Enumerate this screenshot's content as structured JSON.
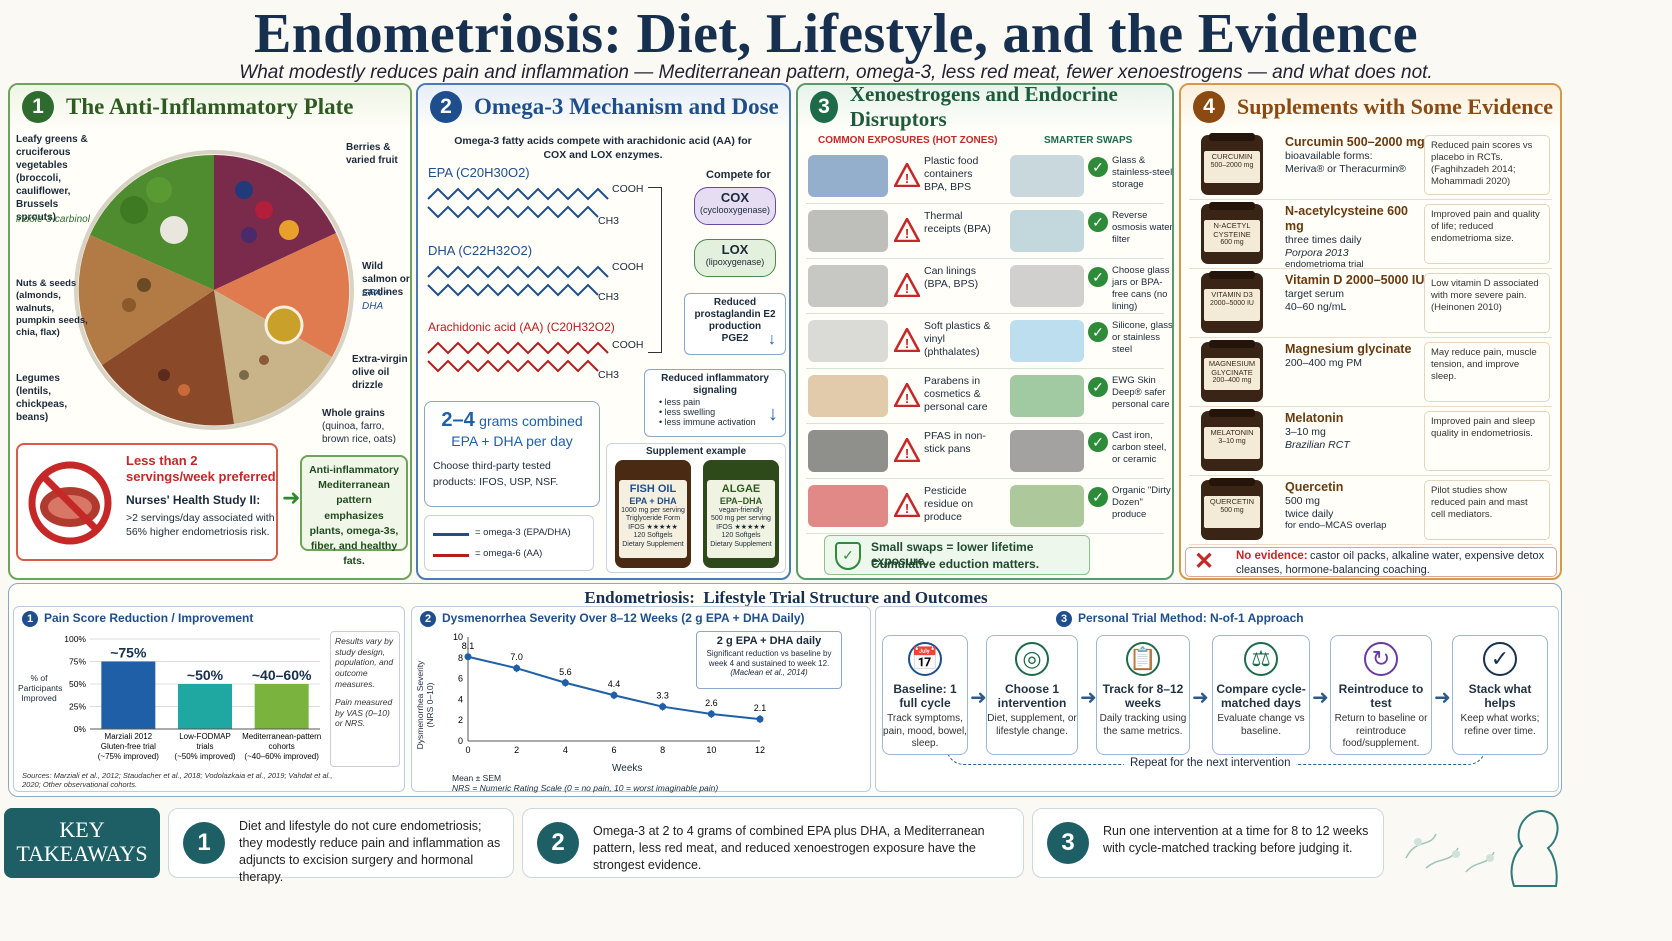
{
  "header": {
    "title": "Endometriosis: Diet, Lifestyle, and the Evidence",
    "subtitle": "What modestly reduces pain and inflammation — Mediterranean pattern, omega-3, less red meat, fewer xenoestrogens — and what does not."
  },
  "colors": {
    "green": "#2f6b2f",
    "blue": "#1f4e8c",
    "teal": "#1e6b4a",
    "brown": "#8a4a12",
    "navy": "#17304f",
    "red": "#c62828"
  },
  "panel1": {
    "num": "1",
    "title": "The Anti-Inflammatory Plate",
    "labels": {
      "leafy": "Leafy greens & cruciferous vegetables (broccoli, cauliflower, Brussels sprouts)",
      "leafy_note": "indole-3-carbinol",
      "berries": "Berries & varied fruit",
      "salmon": "Wild salmon or sardines",
      "salmon_note": "EPA + DHA",
      "nuts": "Nuts & seeds (almonds, walnuts, pumpkin seeds, chia, flax)",
      "oil": "Extra-virgin olive oil drizzle",
      "legumes": "Legumes (lentils, chickpeas, beans)",
      "grains_title": "Whole grains",
      "grains": "(quinoa, farro, brown rice, oats)"
    },
    "redmeat": {
      "heading": "Less than 2 servings/week preferred",
      "study": "Nurses' Health Study II:",
      "detail": ">2 servings/day associated with 56% higher endometriosis risk."
    },
    "med_box": "Anti-inflammatory Mediterranean pattern emphasizes plants, omega-3s, fiber, and healthy fats."
  },
  "panel2": {
    "num": "2",
    "title": "Omega-3 Mechanism and Dose",
    "intro": "Omega-3 fatty acids compete with arachidonic acid (AA) for COX and LOX enzymes.",
    "epa": "EPA (C20H30O2)",
    "dha": "DHA (C22H32O2)",
    "aa": "Arachidonic acid (AA) (C20H32O2)",
    "cooh": "COOH",
    "ch3": "CH3",
    "compete": "Compete for",
    "cox": "COX",
    "cox_sub": "(cyclooxygenase)",
    "lox": "LOX",
    "lox_sub": "(lipoxygenase)",
    "pge_title": "Reduced prostaglandin E2 production",
    "pge": "PGE2",
    "signal_title": "Reduced inflammatory signaling",
    "signal_items": [
      "less pain",
      "less swelling",
      "less immune activation"
    ],
    "dose_big": "2–4",
    "dose_rest": "grams combined EPA + DHA per day",
    "dose_note": "Choose third-party tested products: IFOS, USP, NSF.",
    "legend_o3": "= omega-3 (EPA/DHA)",
    "legend_o6": "= omega-6 (AA)",
    "supp_example": "Supplement example",
    "fish": {
      "name": "FISH OIL",
      "sub": "EPA + DHA",
      "d1": "1000 mg per serving",
      "d2": "Triglyceride Form",
      "d3": "IFOS ★★★★★",
      "d4": "120 Softgels",
      "d5": "Dietary Supplement"
    },
    "algae": {
      "name": "ALGAE",
      "sub": "EPA–DHA",
      "d1": "vegan-friendly",
      "d2": "500 mg per serving",
      "d3": "IFOS ★★★★★",
      "d4": "120 Softgels",
      "d5": "Dietary Supplement"
    }
  },
  "panel3": {
    "num": "3",
    "title": "Xenoestrogens and Endocrine Disruptors",
    "col_left": "COMMON EXPOSURES (HOT ZONES)",
    "col_right": "SMARTER SWAPS",
    "rows": [
      {
        "exposure": "Plastic food containers BPA, BPS",
        "swap": "Glass & stainless-steel storage"
      },
      {
        "exposure": "Thermal receipts (BPA)",
        "swap": "Reverse osmosis water filter"
      },
      {
        "exposure": "Can linings (BPA, BPS)",
        "swap": "Choose glass jars or BPA-free cans (no lining)"
      },
      {
        "exposure": "Soft plastics & vinyl (phthalates)",
        "swap": "Silicone, glass, or stainless steel"
      },
      {
        "exposure": "Parabens in cosmetics & personal care",
        "swap": "EWG Skin Deep® safer personal care"
      },
      {
        "exposure": "PFAS in non-stick pans",
        "swap": "Cast iron, carbon steel, or ceramic"
      },
      {
        "exposure": "Pesticide residue on produce",
        "swap": "Organic \"Dirty Dozen\" produce"
      }
    ],
    "footer1": "Small swaps = lower lifetime exposure.",
    "footer2": "Cumulative eduction matters."
  },
  "panel4": {
    "num": "4",
    "title": "Supplements with Some Evidence",
    "items": [
      {
        "label": "CURCUMIN",
        "dose_lbl": "500–2000 mg",
        "name": "Curcumin 500–2000 mg",
        "l2": "bioavailable forms:",
        "l3": "Meriva® or Theracurmin®",
        "l4": "",
        "note": "Reduced pain scores vs placebo in RCTs. (Faghihzadeh 2014; Mohammadi 2020)"
      },
      {
        "label": "N-ACETYL CYSTEINE",
        "dose_lbl": "600 mg",
        "name": "N-acetylcysteine 600 mg",
        "l2": "three times daily",
        "l3": "Porpora 2013",
        "l4": "endometrioma trial",
        "note": "Improved pain and quality of life; reduced endometrioma size."
      },
      {
        "label": "VITAMIN D3",
        "dose_lbl": "2000–5000 IU",
        "name": "Vitamin D 2000–5000 IU",
        "l2": "target serum",
        "l3": "40–60 ng/mL",
        "l4": "",
        "note": "Low vitamin D associated with more severe pain. (Heinonen 2010)"
      },
      {
        "label": "MAGNESIUM GLYCINATE",
        "dose_lbl": "200–400 mg",
        "name": "Magnesium glycinate",
        "l2": "200–400 mg PM",
        "l3": "",
        "l4": "",
        "note": "May reduce pain, muscle tension, and improve sleep."
      },
      {
        "label": "MELATONIN",
        "dose_lbl": "3–10 mg",
        "name": "Melatonin",
        "l2": "3–10 mg",
        "l3": "Brazilian RCT",
        "l4": "",
        "note": "Improved pain and sleep quality in endometriosis."
      },
      {
        "label": "QUERCETIN",
        "dose_lbl": "500 mg",
        "name": "Quercetin",
        "l2": "500 mg",
        "l3": "twice daily",
        "l4": "for endo–MCAS overlap",
        "note": "Pilot studies show reduced pain and mast cell mediators."
      }
    ],
    "no_evidence_bold": "No evidence:",
    "no_evidence": "castor oil packs, alkaline water, expensive detox cleanses, hormone-balancing coaching."
  },
  "bottom": {
    "title": "Endometriosis:  Lifestyle Trial Structure and Outcomes",
    "pain": {
      "num": "1",
      "title": "Pain Score Reduction / Improvement",
      "ylabel": "% of Participants Improved",
      "yticks": [
        "100%",
        "75%",
        "50%",
        "25%",
        "0%"
      ],
      "note1": "Results vary by study design, population, and outcome measures.",
      "note2": "Pain measured by VAS (0–10) or NRS.",
      "sources": "Sources: Marziali et al., 2012; Staudacher et al., 2018; Vodolazkaia et al., 2019; Vahdat et al., 2020; Other observational cohorts."
    },
    "dys": {
      "num": "2",
      "title": "Dysmenorrhea Severity Over 8–12 Weeks (2 g EPA + DHA Daily)",
      "ylabel": "Dysmenorrhea Severity (NRS 0–10)",
      "xlabel": "Weeks",
      "box_title": "2 g EPA + DHA daily",
      "box_text": "Significant reduction vs baseline by week 4 and sustained to week 12.",
      "box_cite": "(Maclean et al., 2014)",
      "mean": "Mean ± SEM",
      "nrs": "NRS = Numeric Rating Scale (0 = no pain, 10 = worst imaginable pain)"
    },
    "trial": {
      "num": "3",
      "title": "Personal Trial Method: N-of-1 Approach",
      "steps": [
        {
          "t": "Baseline: 1 full cycle",
          "d": "Track symptoms, pain, mood, bowel, sleep."
        },
        {
          "t": "Choose 1 intervention",
          "d": "Diet, supplement, or lifestyle change."
        },
        {
          "t": "Track for 8–12 weeks",
          "d": "Daily tracking using the same metrics."
        },
        {
          "t": "Compare cycle-matched days",
          "d": "Evaluate change vs baseline."
        },
        {
          "t": "Reintroduce to test",
          "d": "Return to baseline or reintroduce food/supplement."
        },
        {
          "t": "Stack what helps",
          "d": "Keep what works; refine over time."
        }
      ],
      "repeat": "Repeat for the next intervention"
    }
  },
  "takeaways": {
    "label1": "KEY",
    "label2": "TAKEAWAYS",
    "items": [
      {
        "n": "1",
        "text": "Diet and lifestyle do not cure endometriosis; they modestly reduce pain and inflammation as adjuncts to excision surgery and hormonal therapy."
      },
      {
        "n": "2",
        "text": "Omega-3 at 2 to 4 grams of combined EPA plus DHA, a Mediterranean pattern, less red meat, and reduced xenoestrogen exposure have the strongest evidence."
      },
      {
        "n": "3",
        "text": "Run one intervention at a time for 8 to 12 weeks with cycle-matched tracking before judging it."
      }
    ]
  },
  "chart_data": [
    {
      "type": "bar",
      "title": "Pain Score Reduction / Improvement",
      "ylabel": "% of Participants Improved",
      "ylim": [
        0,
        100
      ],
      "categories": [
        "Marziali 2012 Gluten-free trial (~75% improved)",
        "Low-FODMAP trials (~50% improved)",
        "Mediterranean-pattern cohorts (~40–60% improved)"
      ],
      "values": [
        75,
        50,
        50
      ],
      "labels": [
        "~75%",
        "~50%",
        "~40–60%"
      ],
      "colors": [
        "#1f5fa8",
        "#1fa7a2",
        "#7bb33f"
      ]
    },
    {
      "type": "line",
      "title": "Dysmenorrhea Severity Over 8–12 Weeks (2 g EPA + DHA Daily)",
      "xlabel": "Weeks",
      "ylabel": "Dysmenorrhea Severity (NRS 0–10)",
      "x": [
        0,
        2,
        4,
        6,
        8,
        10,
        12
      ],
      "y": [
        8.1,
        7.0,
        5.6,
        4.4,
        3.3,
        2.6,
        2.1
      ],
      "xlim": [
        0,
        12
      ],
      "ylim": [
        0,
        10
      ],
      "yticks": [
        0,
        2,
        4,
        6,
        8,
        10
      ],
      "xticks": [
        0,
        2,
        4,
        6,
        8,
        10,
        12
      ]
    }
  ]
}
